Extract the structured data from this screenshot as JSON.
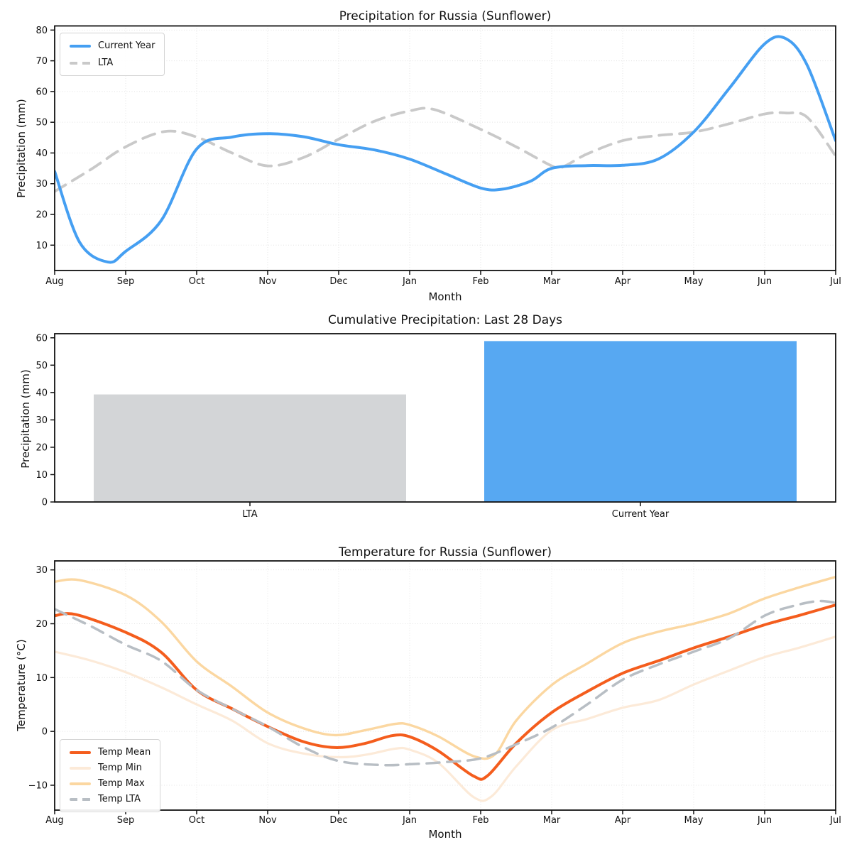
{
  "months": [
    "Aug",
    "Sep",
    "Oct",
    "Nov",
    "Dec",
    "Jan",
    "Feb",
    "Mar",
    "Apr",
    "May",
    "Jun",
    "Jul"
  ],
  "colors": {
    "current_year_line": "#459ff2",
    "current_year_bar": "#57a8f2",
    "lta_line": "#c9c9c9",
    "lta_bar": "#d3d5d7",
    "temp_mean": "#f45d1d",
    "temp_min": "#fcead8",
    "temp_max": "#fbd7a1",
    "temp_lta": "#b8bec4",
    "grid": "#e4e4e4",
    "spine": "#111111",
    "text": "#111111"
  },
  "chart_data": [
    {
      "type": "line",
      "title": "Precipitation for Russia (Sunflower)",
      "xlabel": "Month",
      "ylabel": "Precipitation (mm)",
      "x_tick_labels": [
        "Aug",
        "Sep",
        "Oct",
        "Nov",
        "Dec",
        "Jan",
        "Feb",
        "Mar",
        "Apr",
        "May",
        "Jun",
        "Jul"
      ],
      "y_ticks": [
        10,
        20,
        30,
        40,
        50,
        60,
        70,
        80
      ],
      "xlim": [
        0,
        11
      ],
      "ylim": [
        1.75,
        81.35
      ],
      "grid": true,
      "legend": {
        "position": "upper-left",
        "items": [
          {
            "label": "Current Year",
            "color": "#459ff2",
            "dash": false
          },
          {
            "label": "LTA",
            "color": "#c9c9c9",
            "dash": true
          }
        ]
      },
      "series": [
        {
          "name": "LTA",
          "color": "#c9c9c9",
          "dash": true,
          "width": 3.8,
          "points": [
            [
              0,
              27.5
            ],
            [
              0.5,
              34.5
            ],
            [
              1,
              42
            ],
            [
              1.55,
              47
            ],
            [
              2,
              45.2
            ],
            [
              2.5,
              40
            ],
            [
              3,
              35.8
            ],
            [
              3.5,
              38.5
            ],
            [
              4,
              44.5
            ],
            [
              4.5,
              50.3
            ],
            [
              5,
              53.7
            ],
            [
              5.35,
              54.1
            ],
            [
              6,
              47.7
            ],
            [
              6.5,
              42
            ],
            [
              7,
              35.8
            ],
            [
              7.15,
              35.4
            ],
            [
              7.5,
              39.7
            ],
            [
              8,
              44
            ],
            [
              8.5,
              45.7
            ],
            [
              9,
              46.8
            ],
            [
              9.5,
              49.5
            ],
            [
              10,
              52.7
            ],
            [
              10.3,
              53
            ],
            [
              10.6,
              51.6
            ],
            [
              11,
              39
            ]
          ]
        },
        {
          "name": "Current Year",
          "color": "#459ff2",
          "dash": false,
          "width": 4,
          "points": [
            [
              0,
              34
            ],
            [
              0.35,
              11
            ],
            [
              0.75,
              4.5
            ],
            [
              1,
              8
            ],
            [
              1.5,
              18
            ],
            [
              2,
              41.3
            ],
            [
              2.5,
              45.2
            ],
            [
              3,
              46.3
            ],
            [
              3.5,
              45.3
            ],
            [
              4,
              42.7
            ],
            [
              4.5,
              41
            ],
            [
              5,
              38
            ],
            [
              5.5,
              33.3
            ],
            [
              6,
              28.6
            ],
            [
              6.3,
              28.2
            ],
            [
              6.7,
              30.8
            ],
            [
              7,
              35
            ],
            [
              7.5,
              35.9
            ],
            [
              8,
              36
            ],
            [
              8.5,
              38
            ],
            [
              9,
              46.8
            ],
            [
              9.5,
              61
            ],
            [
              10,
              75.5
            ],
            [
              10.3,
              77.2
            ],
            [
              10.6,
              68.5
            ],
            [
              11,
              44
            ]
          ]
        }
      ]
    },
    {
      "type": "bar",
      "title": "Cumulative Precipitation: Last 28 Days",
      "xlabel": "",
      "ylabel": "Precipitation (mm)",
      "categories": [
        "LTA",
        "Current Year"
      ],
      "values": [
        39.3,
        58.8
      ],
      "bar_colors": [
        "#d3d5d7",
        "#57a8f2"
      ],
      "y_ticks": [
        0,
        10,
        20,
        30,
        40,
        50,
        60
      ],
      "ylim": [
        0,
        61.5
      ],
      "grid": false
    },
    {
      "type": "line",
      "title": "Temperature for Russia (Sunflower)",
      "xlabel": "Month",
      "ylabel": "Temperature (°C)",
      "x_tick_labels": [
        "Aug",
        "Sep",
        "Oct",
        "Nov",
        "Dec",
        "Jan",
        "Feb",
        "Mar",
        "Apr",
        "May",
        "Jun",
        "Jul"
      ],
      "y_ticks": [
        -10,
        0,
        10,
        20,
        30
      ],
      "xlim": [
        0,
        11
      ],
      "ylim": [
        -14.62,
        31.67
      ],
      "grid": true,
      "legend": {
        "position": "lower-left",
        "items": [
          {
            "label": "Temp Mean",
            "color": "#f45d1d",
            "dash": false
          },
          {
            "label": "Temp Min",
            "color": "#fcead8",
            "dash": false
          },
          {
            "label": "Temp Max",
            "color": "#fbd7a1",
            "dash": false
          },
          {
            "label": "Temp LTA",
            "color": "#b8bec4",
            "dash": true
          }
        ]
      },
      "series": [
        {
          "name": "Temp Mean",
          "color": "#f45d1d",
          "dash": false,
          "width": 4,
          "points": [
            [
              0,
              21.5
            ],
            [
              0.3,
              21.7
            ],
            [
              1,
              18.4
            ],
            [
              1.5,
              14.7
            ],
            [
              2,
              7.7
            ],
            [
              2.5,
              4.2
            ],
            [
              3,
              0.9
            ],
            [
              3.5,
              -1.9
            ],
            [
              3.95,
              -3
            ],
            [
              4.35,
              -2.3
            ],
            [
              4.75,
              -0.8
            ],
            [
              5,
              -1
            ],
            [
              5.4,
              -3.6
            ],
            [
              5.9,
              -8.3
            ],
            [
              6.1,
              -8.2
            ],
            [
              6.5,
              -2.2
            ],
            [
              7,
              3.5
            ],
            [
              7.5,
              7.4
            ],
            [
              8,
              10.8
            ],
            [
              8.5,
              13.1
            ],
            [
              9,
              15.5
            ],
            [
              9.5,
              17.6
            ],
            [
              10,
              19.8
            ],
            [
              10.5,
              21.6
            ],
            [
              11,
              23.5
            ]
          ]
        },
        {
          "name": "Temp Min",
          "color": "#fcead8",
          "dash": false,
          "width": 3.2,
          "points": [
            [
              0,
              14.8
            ],
            [
              0.5,
              13.2
            ],
            [
              1,
              11
            ],
            [
              1.5,
              8.2
            ],
            [
              2,
              5
            ],
            [
              2.5,
              2
            ],
            [
              3,
              -2.2
            ],
            [
              3.5,
              -4.1
            ],
            [
              4,
              -4.8
            ],
            [
              4.4,
              -4.3
            ],
            [
              4.8,
              -3.2
            ],
            [
              5,
              -3.4
            ],
            [
              5.4,
              -5.8
            ],
            [
              5.9,
              -12.2
            ],
            [
              6.15,
              -12.1
            ],
            [
              6.5,
              -6.5
            ],
            [
              7,
              0.2
            ],
            [
              7.5,
              2.3
            ],
            [
              8,
              4.4
            ],
            [
              8.5,
              5.8
            ],
            [
              9,
              8.7
            ],
            [
              9.5,
              11.3
            ],
            [
              10,
              13.8
            ],
            [
              10.5,
              15.6
            ],
            [
              11,
              17.6
            ]
          ]
        },
        {
          "name": "Temp Max",
          "color": "#fbd7a1",
          "dash": false,
          "width": 3.4,
          "points": [
            [
              0,
              27.8
            ],
            [
              0.35,
              28.1
            ],
            [
              1,
              25.3
            ],
            [
              1.5,
              20.4
            ],
            [
              2,
              13
            ],
            [
              2.5,
              8.3
            ],
            [
              3,
              3.5
            ],
            [
              3.5,
              0.6
            ],
            [
              3.95,
              -0.7
            ],
            [
              4.4,
              0.3
            ],
            [
              4.8,
              1.4
            ],
            [
              5,
              1.2
            ],
            [
              5.4,
              -0.9
            ],
            [
              5.9,
              -4.6
            ],
            [
              6.2,
              -4.3
            ],
            [
              6.5,
              2
            ],
            [
              7,
              8.6
            ],
            [
              7.5,
              12.6
            ],
            [
              8,
              16.4
            ],
            [
              8.5,
              18.5
            ],
            [
              9,
              20
            ],
            [
              9.5,
              21.9
            ],
            [
              10,
              24.7
            ],
            [
              10.5,
              26.8
            ],
            [
              11,
              28.7
            ]
          ]
        },
        {
          "name": "Temp LTA",
          "color": "#b8bec4",
          "dash": true,
          "width": 3.5,
          "points": [
            [
              0,
              22.7
            ],
            [
              0.5,
              19.6
            ],
            [
              1,
              16.1
            ],
            [
              1.5,
              13.1
            ],
            [
              2,
              7.7
            ],
            [
              2.5,
              4.2
            ],
            [
              3,
              0.9
            ],
            [
              3.5,
              -2.9
            ],
            [
              4,
              -5.5
            ],
            [
              4.6,
              -6.25
            ],
            [
              5,
              -6.1
            ],
            [
              5.5,
              -5.7
            ],
            [
              6,
              -5
            ],
            [
              6.5,
              -2.4
            ],
            [
              7,
              0.7
            ],
            [
              7.5,
              5
            ],
            [
              8,
              9.6
            ],
            [
              8.5,
              12.4
            ],
            [
              9,
              14.8
            ],
            [
              9.5,
              17.3
            ],
            [
              10,
              21.5
            ],
            [
              10.4,
              23.3
            ],
            [
              10.75,
              24.2
            ],
            [
              11,
              23.9
            ]
          ]
        }
      ]
    }
  ]
}
